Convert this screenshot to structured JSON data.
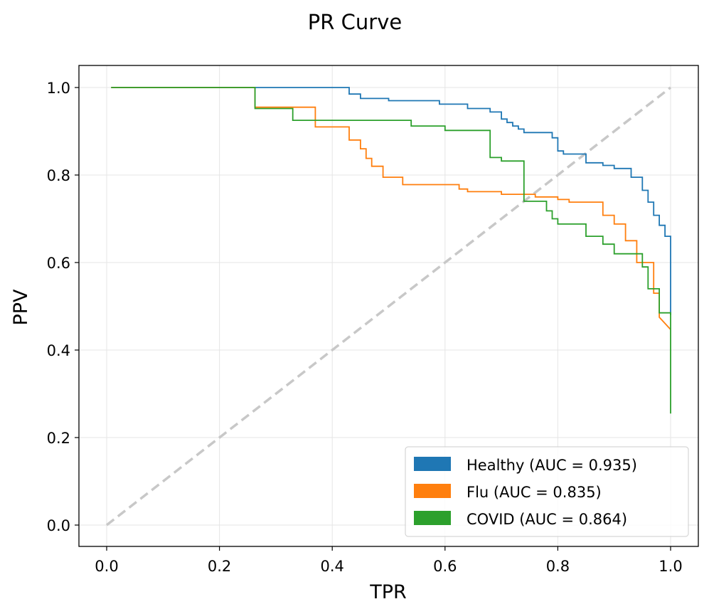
{
  "chart_data": {
    "type": "line",
    "title": "PR Curve",
    "xlabel": "TPR",
    "ylabel": "PPV",
    "xlim": [
      -0.05,
      1.05
    ],
    "ylim": [
      -0.05,
      1.05
    ],
    "grid": true,
    "legend_position": "bottom-right",
    "xticks": [
      "0.0",
      "0.2",
      "0.4",
      "0.6",
      "0.8",
      "1.0"
    ],
    "yticks": [
      "0.0",
      "0.2",
      "0.4",
      "0.6",
      "0.8",
      "1.0"
    ],
    "reference_line": {
      "style": "dashed",
      "color": "#c8c8c8",
      "x": [
        0,
        1
      ],
      "y": [
        0,
        1
      ]
    },
    "series": [
      {
        "name": "Healthy",
        "label": "Healthy (AUC = 0.935)",
        "auc": 0.935,
        "color": "#1f77b4",
        "x": [
          0.008,
          0.43,
          0.43,
          0.45,
          0.45,
          0.5,
          0.5,
          0.59,
          0.59,
          0.64,
          0.64,
          0.68,
          0.68,
          0.7,
          0.7,
          0.71,
          0.71,
          0.72,
          0.72,
          0.73,
          0.73,
          0.74,
          0.74,
          0.79,
          0.79,
          0.8,
          0.8,
          0.81,
          0.81,
          0.85,
          0.85,
          0.88,
          0.88,
          0.9,
          0.9,
          0.93,
          0.93,
          0.95,
          0.95,
          0.96,
          0.96,
          0.97,
          0.97,
          0.98,
          0.98,
          0.99,
          0.99,
          1.0,
          1.0
        ],
        "y": [
          1.0,
          1.0,
          0.985,
          0.985,
          0.975,
          0.975,
          0.97,
          0.97,
          0.962,
          0.962,
          0.952,
          0.952,
          0.944,
          0.944,
          0.928,
          0.928,
          0.92,
          0.92,
          0.912,
          0.912,
          0.905,
          0.905,
          0.897,
          0.897,
          0.885,
          0.885,
          0.855,
          0.855,
          0.848,
          0.848,
          0.828,
          0.828,
          0.822,
          0.822,
          0.815,
          0.815,
          0.795,
          0.795,
          0.765,
          0.765,
          0.738,
          0.738,
          0.708,
          0.708,
          0.685,
          0.685,
          0.66,
          0.66,
          0.48
        ]
      },
      {
        "name": "Flu",
        "label": "Flu (AUC = 0.835)",
        "auc": 0.835,
        "color": "#ff7f0e",
        "x": [
          0.008,
          0.263,
          0.263,
          0.37,
          0.37,
          0.43,
          0.43,
          0.45,
          0.45,
          0.46,
          0.46,
          0.47,
          0.47,
          0.49,
          0.49,
          0.525,
          0.525,
          0.625,
          0.625,
          0.64,
          0.64,
          0.7,
          0.7,
          0.76,
          0.76,
          0.8,
          0.8,
          0.82,
          0.82,
          0.88,
          0.88,
          0.9,
          0.9,
          0.92,
          0.92,
          0.94,
          0.94,
          0.97,
          0.97,
          0.98,
          0.98,
          1.0
        ],
        "y": [
          1.0,
          1.0,
          0.955,
          0.955,
          0.91,
          0.91,
          0.88,
          0.88,
          0.86,
          0.86,
          0.838,
          0.838,
          0.82,
          0.82,
          0.795,
          0.795,
          0.778,
          0.778,
          0.768,
          0.768,
          0.762,
          0.762,
          0.756,
          0.756,
          0.75,
          0.75,
          0.744,
          0.744,
          0.738,
          0.738,
          0.708,
          0.708,
          0.688,
          0.688,
          0.65,
          0.65,
          0.6,
          0.6,
          0.53,
          0.53,
          0.475,
          0.447
        ]
      },
      {
        "name": "COVID",
        "label": "COVID (AUC = 0.864)",
        "auc": 0.864,
        "color": "#2ca02c",
        "x": [
          0.008,
          0.263,
          0.263,
          0.33,
          0.33,
          0.54,
          0.54,
          0.6,
          0.6,
          0.68,
          0.68,
          0.7,
          0.7,
          0.74,
          0.74,
          0.78,
          0.78,
          0.79,
          0.79,
          0.8,
          0.8,
          0.85,
          0.85,
          0.88,
          0.88,
          0.9,
          0.9,
          0.95,
          0.95,
          0.96,
          0.96,
          0.98,
          0.98,
          1.0,
          1.0
        ],
        "y": [
          1.0,
          1.0,
          0.952,
          0.952,
          0.925,
          0.925,
          0.912,
          0.912,
          0.902,
          0.902,
          0.84,
          0.84,
          0.832,
          0.832,
          0.74,
          0.74,
          0.718,
          0.718,
          0.7,
          0.7,
          0.688,
          0.688,
          0.66,
          0.66,
          0.642,
          0.642,
          0.62,
          0.62,
          0.59,
          0.59,
          0.54,
          0.54,
          0.485,
          0.485,
          0.255
        ]
      }
    ]
  }
}
